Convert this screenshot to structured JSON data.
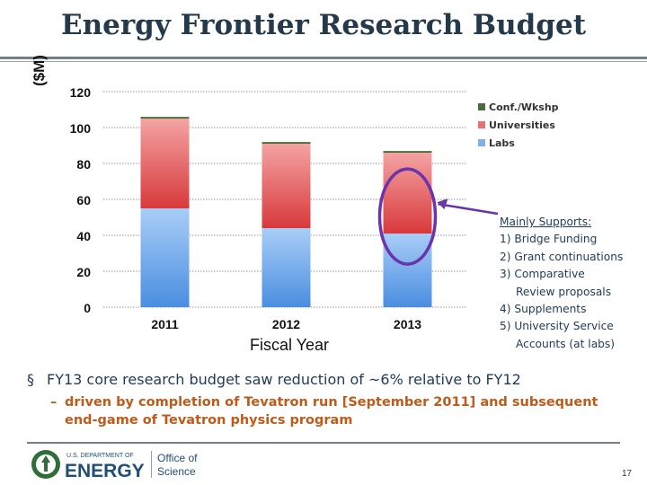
{
  "header": {
    "title": "Energy Frontier Research Budget"
  },
  "chart_data": {
    "type": "bar",
    "stacked": true,
    "title": "",
    "xlabel": "Fiscal Year",
    "ylabel": "($M)",
    "ylim": [
      0,
      120
    ],
    "yticks": [
      0,
      20,
      40,
      60,
      80,
      100,
      120
    ],
    "categories": [
      "2011",
      "2012",
      "2013"
    ],
    "series": [
      {
        "name": "Labs",
        "values": [
          55,
          44,
          41
        ],
        "color": "#7fb0ea"
      },
      {
        "name": "Universities",
        "values": [
          50,
          47,
          45
        ],
        "color": "#e86f72"
      },
      {
        "name": "Conf./Wkshp",
        "values": [
          1,
          1,
          1
        ],
        "color": "#4a6b3a"
      }
    ],
    "legend_order": [
      "Conf./Wkshp",
      "Universities",
      "Labs"
    ],
    "legend_position": "right",
    "highlight_category": "2013"
  },
  "annotation": {
    "heading": "Mainly Supports:",
    "lines": [
      "1) Bridge Funding",
      "2) Grant continuations",
      "3) Comparative",
      "Review proposals",
      "4) Supplements",
      "5) University Service",
      "Accounts (at labs)"
    ]
  },
  "bullets": {
    "main": "FY13 core research budget saw reduction of ~6% relative to FY12",
    "main_marker": "§",
    "sub": "driven by completion of Tevatron run [September 2011] and subsequent end-game of Tevatron physics program",
    "sub_marker": "–"
  },
  "footer": {
    "logo_dept": "U.S. DEPARTMENT OF",
    "logo_energy": "ENERGY",
    "logo_office_line1": "Office of",
    "logo_office_line2": "Science",
    "page_number": "17"
  }
}
